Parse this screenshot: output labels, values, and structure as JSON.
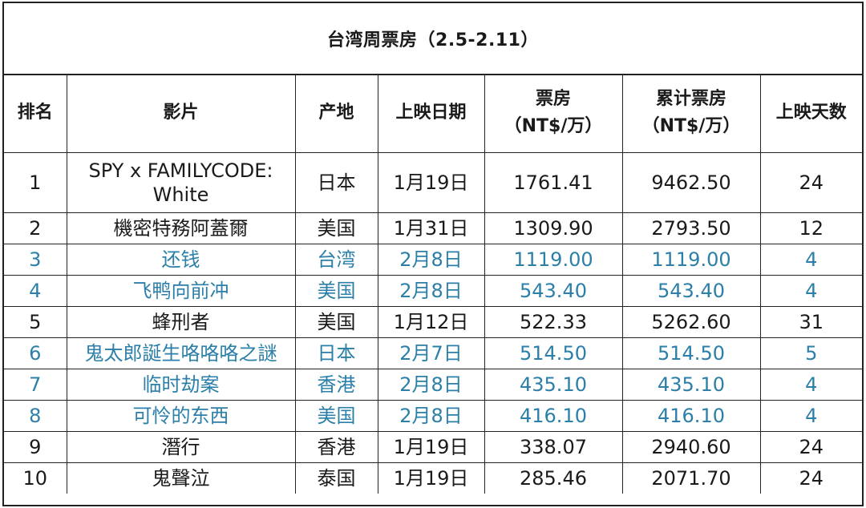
{
  "title": "台湾周票房（2.5-2.11）",
  "headers": {
    "rank": "排名",
    "film": "影片",
    "origin": "产地",
    "release": "上映日期",
    "box_line1": "票房",
    "box_line2": "（NT$/万）",
    "total_line1": "累计票房",
    "total_line2": "（NT$/万）",
    "days": "上映天数"
  },
  "colors": {
    "highlight": "#2b7fa8",
    "text": "#1a1a1a",
    "border": "#222222"
  },
  "rows": [
    {
      "rank": "1",
      "film": "SPY x FAMILYCODE: White",
      "origin": "日本",
      "release": "1月19日",
      "box": "1761.41",
      "total": "9462.50",
      "days": "24",
      "new": false
    },
    {
      "rank": "2",
      "film": "機密特務阿蓋爾",
      "origin": "美国",
      "release": "1月31日",
      "box": "1309.90",
      "total": "2793.50",
      "days": "12",
      "new": false
    },
    {
      "rank": "3",
      "film": "还钱",
      "origin": "台湾",
      "release": "2月8日",
      "box": "1119.00",
      "total": "1119.00",
      "days": "4",
      "new": true
    },
    {
      "rank": "4",
      "film": "飞鸭向前冲",
      "origin": "美国",
      "release": "2月8日",
      "box": "543.40",
      "total": "543.40",
      "days": "4",
      "new": true
    },
    {
      "rank": "5",
      "film": "蜂刑者",
      "origin": "美国",
      "release": "1月12日",
      "box": "522.33",
      "total": "5262.60",
      "days": "31",
      "new": false
    },
    {
      "rank": "6",
      "film": "鬼太郎誕生咯咯咯之謎",
      "origin": "日本",
      "release": "2月7日",
      "box": "514.50",
      "total": "514.50",
      "days": "5",
      "new": true
    },
    {
      "rank": "7",
      "film": "临时劫案",
      "origin": "香港",
      "release": "2月8日",
      "box": "435.10",
      "total": "435.10",
      "days": "4",
      "new": true
    },
    {
      "rank": "8",
      "film": "可怜的东西",
      "origin": "美国",
      "release": "2月8日",
      "box": "416.10",
      "total": "416.10",
      "days": "4",
      "new": true
    },
    {
      "rank": "9",
      "film": "潛行",
      "origin": "香港",
      "release": "1月19日",
      "box": "338.07",
      "total": "2940.60",
      "days": "24",
      "new": false
    },
    {
      "rank": "10",
      "film": "鬼聲泣",
      "origin": "泰国",
      "release": "1月19日",
      "box": "285.46",
      "total": "2071.70",
      "days": "24",
      "new": false
    }
  ]
}
